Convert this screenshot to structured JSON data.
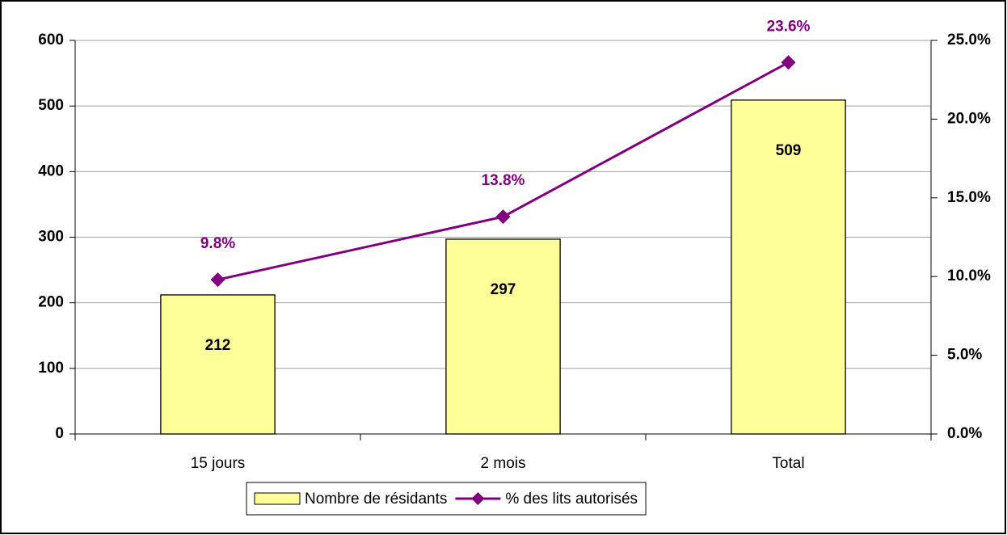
{
  "chart_data": {
    "type": "bar",
    "categories": [
      "15 jours",
      "2 mois",
      "Total"
    ],
    "series": [
      {
        "name": "Nombre de résidants",
        "type": "bar",
        "color": "#ffff99",
        "values": [
          212,
          297,
          509
        ]
      },
      {
        "name": "% des lits autorisés",
        "type": "line",
        "axis": "y2",
        "color": "#800080",
        "values": [
          9.8,
          13.8,
          23.6
        ],
        "value_labels": [
          "9.8%",
          "13.8%",
          "23.6%"
        ]
      }
    ],
    "ylim": [
      0,
      600
    ],
    "yticks": [
      0,
      100,
      200,
      300,
      400,
      500,
      600
    ],
    "y2lim": [
      0,
      25
    ],
    "y2ticks": [
      {
        "value": 0,
        "label": "0.0%"
      },
      {
        "value": 5,
        "label": "5.0%"
      },
      {
        "value": 10,
        "label": "10.0%"
      },
      {
        "value": 15,
        "label": "15.0%"
      },
      {
        "value": 20,
        "label": "20.0%"
      },
      {
        "value": 25,
        "label": "25.0%"
      }
    ],
    "grid": true,
    "legend": "bottom"
  }
}
